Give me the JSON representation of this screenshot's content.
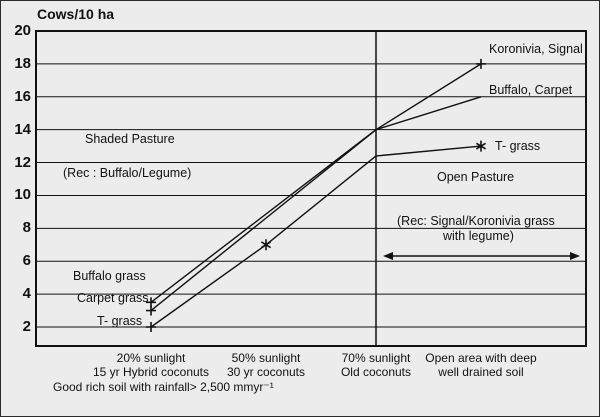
{
  "title": "Cows/10 ha",
  "chart_data": {
    "type": "line",
    "title": "Cows/10 ha",
    "ylabel": "Cows/10 ha",
    "xlabel": "",
    "ylim": [
      0,
      20
    ],
    "yticks": [
      20,
      18,
      16,
      14,
      12,
      10,
      8,
      6,
      4,
      2
    ],
    "grid": "horizontal gridlines every 2 units",
    "legend_position": "none (lines labeled directly)",
    "divider_x_idx": 2,
    "categories": [
      "20% sunlight / 15 yr Hybrid coconuts",
      "50% sunlight / 30 yr coconuts",
      "70% sunlight / Old coconuts",
      "Open area with deep well drained soil"
    ],
    "series": [
      {
        "name": "Buffalo grass (shaded) -> Buffalo, Carpet (open)",
        "x_idx": [
          0,
          2,
          3
        ],
        "values": [
          3.5,
          14,
          16
        ],
        "markers": [
          "+",
          "",
          ""
        ]
      },
      {
        "name": "Carpet grass (shaded) -> Koronivia, Signal (open)",
        "x_idx": [
          0,
          2,
          3
        ],
        "values": [
          3,
          14,
          18
        ],
        "markers": [
          "+",
          "",
          "+"
        ]
      },
      {
        "name": "T-grass",
        "x_idx": [
          0,
          1,
          2,
          3
        ],
        "values": [
          2,
          7,
          12.4,
          13
        ],
        "markers": [
          "+",
          "*",
          "",
          "*"
        ]
      }
    ],
    "regions": [
      {
        "label": "Shaded Pasture",
        "note": "(Rec : Buffalo/Legume)"
      },
      {
        "label": "Open Pasture",
        "note": "(Rec: Signal/Koronivia grass with legume)"
      }
    ]
  },
  "labels": {
    "title": "Cows/10 ha",
    "shaded_pasture": "Shaded Pasture",
    "shaded_rec": "(Rec : Buffalo/Legume)",
    "open_pasture": "Open Pasture",
    "open_rec_line1": "(Rec: Signal/Koronivia grass",
    "open_rec_line2": "with legume)",
    "buffalo_grass": "Buffalo grass",
    "carpet_grass": "Carpet grass",
    "t_grass_left": "T- grass",
    "koronivia_signal": "Koronivia, Signal",
    "buffalo_carpet": "Buffalo, Carpet",
    "t_grass_right": "T- grass"
  },
  "x_axis": {
    "row1": [
      "20% sunlight",
      "50% sunlight",
      "70% sunlight",
      "Open area with deep"
    ],
    "row2": [
      "15 yr Hybrid coconuts",
      "30 yr coconuts",
      "Old coconuts",
      "well drained soil"
    ],
    "row3": "Good rich soil with rainfall> 2,500 mmyr⁻¹"
  },
  "colors": {
    "ink": "#111111",
    "background": "#ececec"
  }
}
